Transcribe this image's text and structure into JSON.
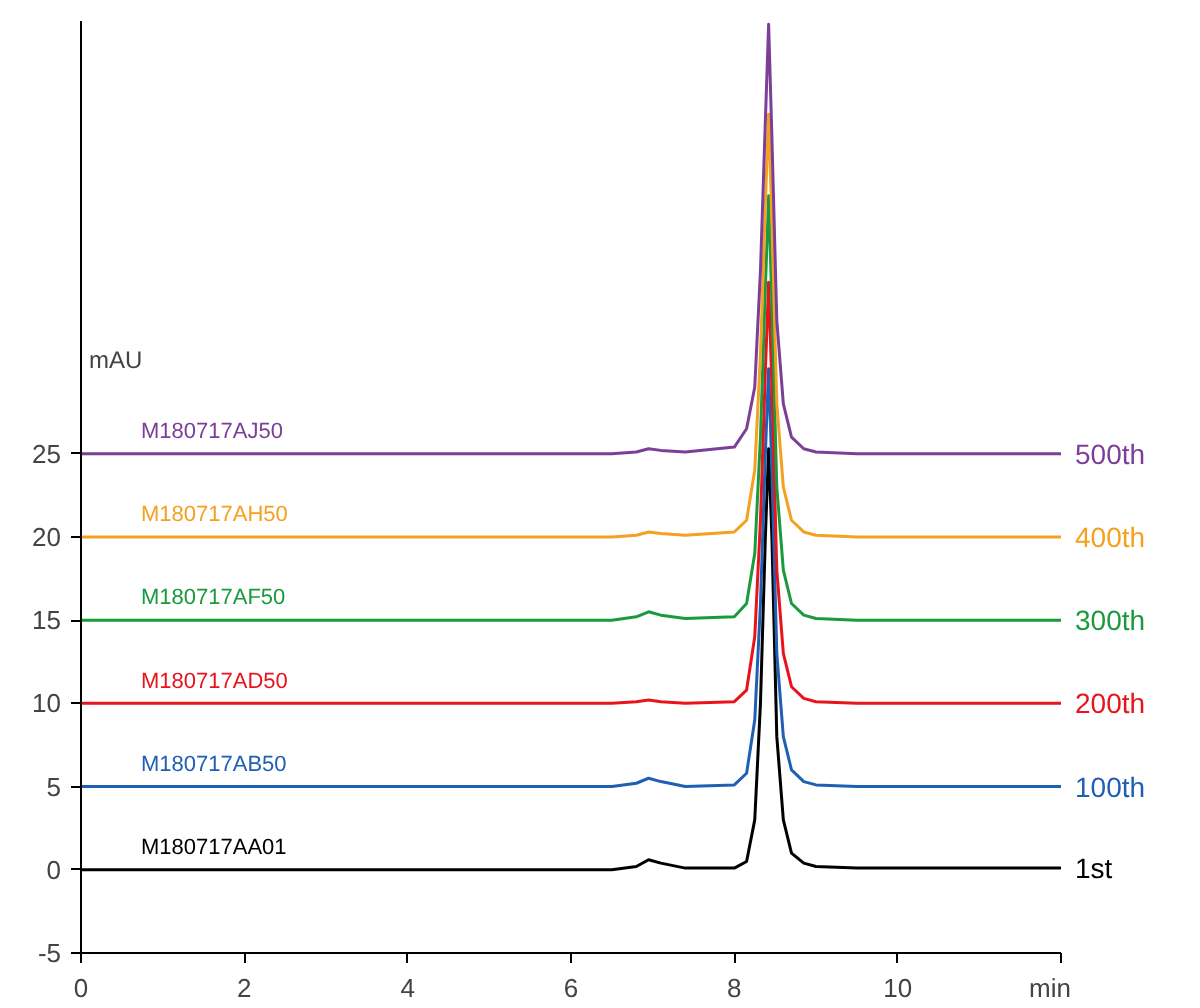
{
  "chart_data": {
    "type": "line",
    "ylabel": "mAU",
    "xlim": [
      0,
      12
    ],
    "ylim": [
      -5,
      51
    ],
    "xticks": [
      0,
      2,
      4,
      6,
      8,
      10,
      {
        "value": 12,
        "label": "min"
      }
    ],
    "yticks": [
      -5,
      0,
      5,
      10,
      15,
      20,
      25
    ],
    "grid": false,
    "legend": false,
    "marker": "none",
    "line_style": "solid",
    "x": [
      0,
      3,
      6.5,
      6.8,
      6.95,
      7.1,
      7.4,
      8.0,
      8.15,
      8.25,
      8.32,
      8.38,
      8.42,
      8.46,
      8.52,
      8.6,
      8.7,
      8.85,
      9.0,
      9.5,
      12
    ],
    "series": [
      {
        "name": "1st",
        "color": "#000000",
        "values": [
          0,
          0,
          0,
          0.2,
          0.6,
          0.4,
          0.1,
          0.1,
          0.5,
          3,
          10,
          20,
          25.3,
          20,
          8,
          3,
          1,
          0.4,
          0.2,
          0.1,
          0.1
        ]
      },
      {
        "name": "100th",
        "color": "#1f5fb4",
        "values": [
          5,
          5,
          5,
          5.2,
          5.5,
          5.3,
          5,
          5.1,
          5.8,
          9,
          16,
          25,
          30.1,
          24,
          13,
          8,
          6,
          5.3,
          5.1,
          5,
          5
        ]
      },
      {
        "name": "200th",
        "color": "#e8141c",
        "values": [
          10,
          10,
          10,
          10.1,
          10.2,
          10.1,
          10,
          10.1,
          10.8,
          14,
          21,
          30,
          35.3,
          29,
          18,
          13,
          11,
          10.3,
          10.1,
          10,
          10
        ]
      },
      {
        "name": "300th",
        "color": "#1a9a3c",
        "values": [
          15,
          15,
          15,
          15.2,
          15.5,
          15.3,
          15.1,
          15.2,
          16,
          19,
          26,
          35,
          40.5,
          34,
          23,
          18,
          16,
          15.3,
          15.1,
          15,
          15
        ]
      },
      {
        "name": "400th",
        "color": "#f5a020",
        "values": [
          20,
          20,
          20,
          20.1,
          20.3,
          20.2,
          20.1,
          20.3,
          21,
          24,
          31,
          40,
          45.4,
          39,
          28,
          23,
          21,
          20.3,
          20.1,
          20,
          20
        ]
      },
      {
        "name": "500th",
        "color": "#7b3f98",
        "values": [
          25,
          25,
          25,
          25.1,
          25.3,
          25.2,
          25.1,
          25.4,
          26.5,
          29,
          36,
          45,
          50.8,
          44,
          33,
          28,
          26,
          25.3,
          25.1,
          25,
          25
        ]
      }
    ],
    "annotations": [
      {
        "text": "M180717AA01",
        "y": 0.1
      },
      {
        "text": "M180717AB50",
        "y": 5.1
      },
      {
        "text": "M180717AD50",
        "y": 10.1
      },
      {
        "text": "M180717AF50",
        "y": 15.1
      },
      {
        "text": "M180717AH50",
        "y": 20.1
      },
      {
        "text": "M180717AJ50",
        "y": 25.1
      }
    ]
  }
}
